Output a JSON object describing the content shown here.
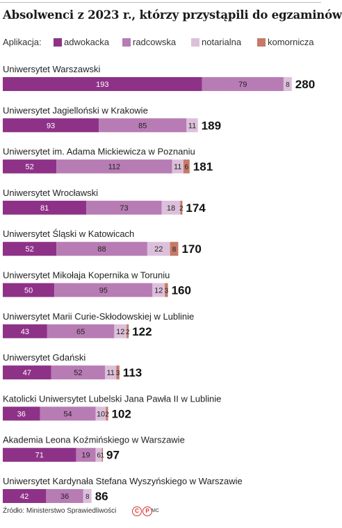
{
  "chart_data": {
    "type": "bar",
    "orientation": "horizontal",
    "stacked": true,
    "title": "Absolwenci z 2023 r., którzy przystąpili do egzaminów",
    "legend_label": "Aplikacja:",
    "legend_position": "top",
    "categories": [
      "Uniwersytet Warszawski",
      "Uniwersytet Jagielloński w Krakowie",
      "Uniwersytet im. Adama Mickiewicza w Poznaniu",
      "Uniwersytet Wrocławski",
      "Uniwersytet Śląski w Katowicach",
      "Uniwersytet Mikołaja Kopernika w Toruniu",
      "Uniwersytet Marii Curie-Skłodowskiej w Lublinie",
      "Uniwersytet Gdański",
      "Katolicki Uniwersytet Lubelski Jana Pawła II w Lublinie",
      "Akademia Leona Koźmińskiego w Warszawie",
      "Uniwersytet Kardynała Stefana Wyszyńskiego w Warszawie"
    ],
    "series": [
      {
        "name": "adwokacka",
        "color": "#8e3288",
        "values": [
          193,
          93,
          52,
          81,
          52,
          50,
          43,
          47,
          36,
          71,
          42
        ]
      },
      {
        "name": "radcowska",
        "color": "#b87cb5",
        "values": [
          79,
          85,
          112,
          73,
          88,
          95,
          65,
          52,
          54,
          19,
          36
        ]
      },
      {
        "name": "notarialna",
        "color": "#dcc0db",
        "values": [
          8,
          11,
          11,
          18,
          22,
          12,
          12,
          11,
          10,
          6,
          8
        ]
      },
      {
        "name": "komornicza",
        "color": "#c57a67",
        "values": [
          0,
          0,
          6,
          2,
          8,
          3,
          2,
          3,
          2,
          1,
          0
        ]
      }
    ],
    "totals": [
      280,
      189,
      181,
      174,
      170,
      160,
      122,
      113,
      102,
      97,
      86
    ],
    "grid": false
  },
  "footer": {
    "source": "Źródło: Ministerstwo Sprawiedliwości",
    "logo": [
      "C",
      "P"
    ],
    "author": "MC"
  }
}
